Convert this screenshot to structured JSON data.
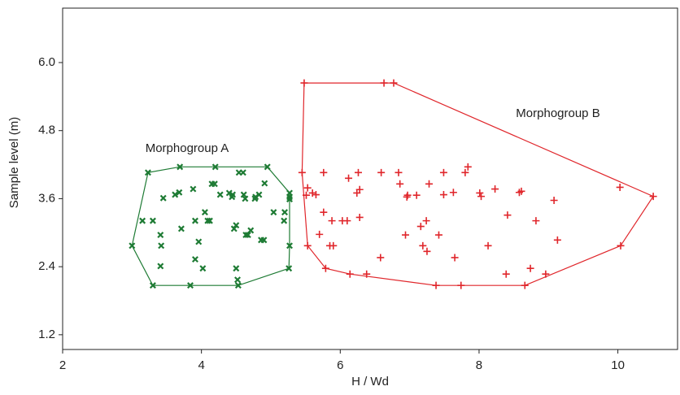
{
  "chart_data": {
    "type": "scatter",
    "xlabel": "H / Wd",
    "ylabel": "Sample level (m)",
    "xlim": [
      2,
      10.86
    ],
    "ylim": [
      0.94,
      6.96
    ],
    "xticks": [
      2,
      4,
      6,
      8,
      10
    ],
    "yticks": [
      1.2,
      2.4,
      3.6,
      4.8,
      {
        "value": 6,
        "label": "6.0"
      }
    ],
    "hull": true,
    "series": [
      {
        "name": "Morphogroup A",
        "color": "#1e7b34",
        "marker": "x",
        "x": [
          3.23,
          3.69,
          4.2,
          4.54,
          4.6,
          4.95,
          4.91,
          4.19,
          4.15,
          3.88,
          3.62,
          3.68,
          3.45,
          4.27,
          4.44,
          4.4,
          4.45,
          4.61,
          4.63,
          4.78,
          4.83,
          4.77,
          5.04,
          5.2,
          5.27,
          5.27,
          5.27,
          4.05,
          3.91,
          4.09,
          4.12,
          3.15,
          3.3,
          4.5,
          4.47,
          3.41,
          3.42,
          3.0,
          3.71,
          4.71,
          4.9,
          4.86,
          4.64,
          4.67,
          3.96,
          5.27,
          3.41,
          3.91,
          4.02,
          4.5,
          4.52,
          4.53,
          3.84,
          3.3,
          5.26,
          5.19
        ],
        "values": [
          4.06,
          4.16,
          4.16,
          4.06,
          4.06,
          4.16,
          3.87,
          3.86,
          3.86,
          3.77,
          3.67,
          3.71,
          3.61,
          3.67,
          3.63,
          3.7,
          3.67,
          3.67,
          3.6,
          3.63,
          3.67,
          3.6,
          3.36,
          3.36,
          3.7,
          3.63,
          3.59,
          3.36,
          3.21,
          3.21,
          3.21,
          3.21,
          3.21,
          3.13,
          3.07,
          2.96,
          2.77,
          2.77,
          3.07,
          3.04,
          2.87,
          2.87,
          2.96,
          2.96,
          2.84,
          2.77,
          2.41,
          2.53,
          2.37,
          2.37,
          2.17,
          2.07,
          2.07,
          2.07,
          2.37,
          3.21
        ]
      },
      {
        "name": "Morphogroup B",
        "color": "#e0262b",
        "marker": "+",
        "x": [
          5.48,
          6.63,
          6.77,
          10.51,
          10.03,
          10.04,
          8.66,
          7.74,
          7.38,
          5.79,
          5.45,
          5.76,
          6.12,
          6.26,
          6.59,
          6.84,
          7.49,
          7.8,
          7.84,
          7.28,
          6.86,
          5.53,
          5.6,
          5.65,
          5.51,
          6.28,
          6.24,
          6.97,
          7.1,
          6.96,
          7.49,
          7.63,
          8.01,
          8.03,
          8.23,
          8.58,
          8.61,
          9.08,
          5.76,
          5.88,
          6.03,
          6.1,
          6.28,
          7.24,
          7.16,
          8.41,
          8.82,
          5.7,
          6.94,
          7.42,
          5.53,
          5.85,
          5.9,
          7.19,
          7.25,
          8.13,
          9.13,
          6.58,
          7.65,
          8.74,
          6.14,
          6.38,
          8.39,
          8.96
        ],
        "values": [
          5.64,
          5.64,
          5.64,
          3.64,
          3.8,
          2.77,
          2.07,
          2.07,
          2.07,
          2.37,
          4.06,
          4.06,
          3.96,
          4.06,
          4.06,
          4.06,
          4.06,
          4.06,
          4.16,
          3.86,
          3.86,
          3.79,
          3.7,
          3.67,
          3.66,
          3.76,
          3.7,
          3.66,
          3.66,
          3.63,
          3.67,
          3.71,
          3.7,
          3.64,
          3.77,
          3.71,
          3.73,
          3.57,
          3.36,
          3.21,
          3.21,
          3.21,
          3.27,
          3.21,
          3.11,
          3.31,
          3.21,
          2.97,
          2.96,
          2.96,
          2.77,
          2.77,
          2.77,
          2.77,
          2.67,
          2.77,
          2.87,
          2.56,
          2.56,
          2.37,
          2.27,
          2.27,
          2.27,
          2.27
        ]
      }
    ]
  }
}
